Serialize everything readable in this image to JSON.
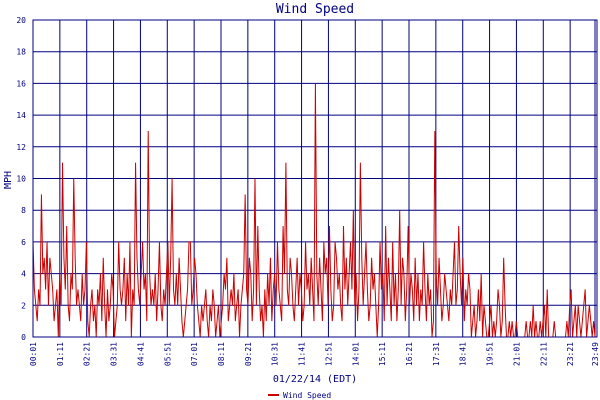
{
  "chart_data": {
    "type": "line",
    "title": "Wind Speed",
    "xlabel": "01/22/14 (EDT)",
    "ylabel": "MPH",
    "ylim": [
      0,
      20
    ],
    "yticks": [
      0,
      2,
      4,
      6,
      8,
      10,
      12,
      14,
      16,
      18,
      20
    ],
    "grid": true,
    "legend_position": "bottom",
    "colors": {
      "series": "#cc0000",
      "grid": "#000080",
      "text": "#000080",
      "background": "#ffffff"
    },
    "x_tick_labels": [
      "00:01",
      "01:11",
      "02:21",
      "03:31",
      "04:41",
      "05:51",
      "07:01",
      "08:11",
      "09:21",
      "10:31",
      "11:41",
      "12:51",
      "14:01",
      "15:11",
      "16:21",
      "17:31",
      "18:41",
      "19:51",
      "21:01",
      "22:11",
      "23:21",
      "23:49"
    ],
    "series": [
      {
        "name": "Wind Speed",
        "x_start": "00:01",
        "x_end": "23:49",
        "values": [
          6,
          3,
          2,
          1,
          3,
          2,
          9,
          4,
          5,
          3,
          6,
          2,
          5,
          4,
          3,
          1,
          2,
          3,
          0,
          4,
          2,
          11,
          5,
          3,
          7,
          2,
          1,
          4,
          3,
          10,
          5,
          2,
          3,
          2,
          1,
          4,
          2,
          3,
          6,
          1,
          0,
          2,
          3,
          1,
          2,
          0,
          3,
          2,
          4,
          1,
          5,
          2,
          0,
          3,
          1,
          2,
          4,
          3,
          0,
          1,
          2,
          6,
          3,
          2,
          3,
          5,
          1,
          4,
          2,
          6,
          0,
          3,
          2,
          11,
          5,
          3,
          2,
          4,
          6,
          3,
          4,
          1,
          13,
          4,
          2,
          3,
          2,
          4,
          1,
          3,
          6,
          2,
          1,
          3,
          2,
          4,
          6,
          2,
          5,
          10,
          3,
          2,
          4,
          2,
          5,
          3,
          1,
          0,
          1,
          2,
          3,
          6,
          6,
          2,
          3,
          5,
          4,
          2,
          1,
          0,
          2,
          1,
          2,
          3,
          1,
          0,
          2,
          1,
          3,
          2,
          0,
          1,
          2,
          0,
          1,
          2,
          4,
          3,
          5,
          1,
          2,
          3,
          2,
          4,
          1,
          2,
          3,
          0,
          2,
          3,
          4,
          9,
          3,
          2,
          5,
          4,
          1,
          3,
          10,
          2,
          7,
          3,
          1,
          2,
          0,
          3,
          1,
          4,
          2,
          5,
          1,
          3,
          4,
          2,
          6,
          3,
          2,
          1,
          7,
          4,
          11,
          3,
          2,
          5,
          4,
          2,
          1,
          3,
          5,
          2,
          4,
          3,
          1,
          2,
          6,
          3,
          4,
          2,
          5,
          3,
          1,
          16,
          4,
          2,
          5,
          3,
          1,
          6,
          4,
          5,
          2,
          7,
          3,
          1,
          2,
          6,
          5,
          3,
          4,
          2,
          1,
          7,
          3,
          5,
          2,
          4,
          6,
          3,
          8,
          2,
          4,
          1,
          3,
          11,
          5,
          2,
          4,
          6,
          3,
          1,
          2,
          5,
          3,
          4,
          2,
          0,
          2,
          6,
          3,
          4,
          1,
          7,
          2,
          5,
          3,
          1,
          6,
          2,
          4,
          1,
          3,
          8,
          2,
          5,
          4,
          1,
          3,
          7,
          2,
          4,
          3,
          1,
          5,
          2,
          4,
          1,
          3,
          2,
          6,
          3,
          1,
          4,
          2,
          3,
          0,
          1,
          13,
          4,
          2,
          5,
          3,
          1,
          2,
          4,
          3,
          2,
          1,
          3,
          2,
          4,
          6,
          2,
          3,
          7,
          4,
          2,
          5,
          1,
          3,
          2,
          4,
          3,
          0,
          1,
          2,
          0,
          1,
          3,
          1,
          4,
          0,
          2,
          1,
          0,
          0,
          1,
          2,
          0,
          1,
          0,
          1,
          3,
          2,
          0,
          1,
          5,
          2,
          0,
          0,
          1,
          0,
          1,
          0,
          0,
          1,
          0,
          0,
          0,
          0,
          0,
          0,
          1,
          0,
          0,
          1,
          0,
          2,
          0,
          1,
          0,
          0,
          1,
          0,
          1,
          2,
          0,
          3,
          0,
          0,
          0,
          0,
          1,
          0,
          0,
          0,
          0,
          0,
          0,
          0,
          0,
          1,
          0,
          2,
          3,
          0,
          1,
          2,
          0,
          2,
          1,
          0,
          1,
          2,
          3,
          0,
          1,
          2,
          1,
          0,
          1,
          0
        ]
      }
    ]
  }
}
